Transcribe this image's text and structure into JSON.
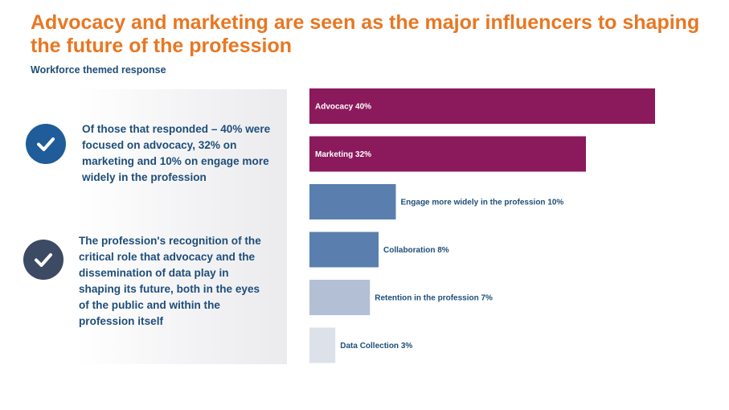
{
  "header": {
    "title": "Advocacy and marketing are seen as the major influencers to shaping the future of the profession",
    "subtitle": "Workforce themed response"
  },
  "points": [
    {
      "icon": "check-circle-icon",
      "text": "Of those that responded – 40% were focused on advocacy, 32% on marketing and 10% on engage more widely in the profession"
    },
    {
      "icon": "check-circle-icon",
      "text": "The profession's recognition of the critical role that advocacy and the dissemination of data play in shaping its future, both in the eyes of the public and within the profession itself"
    }
  ],
  "colors": {
    "title": "#e87722",
    "text": "#1f4e79",
    "advocacy_marketing": "#8b1a5c",
    "engage_collab": "#5a7fae",
    "retention": "#b3bfd4",
    "data_collection": "#dde2ea"
  },
  "chart_data": {
    "type": "bar",
    "orientation": "horizontal",
    "categories": [
      "Advocacy",
      "Marketing",
      "Engage more widely in the profession",
      "Collaboration",
      "Retention in the profession",
      "Data Collection"
    ],
    "values": [
      40,
      32,
      10,
      8,
      7,
      3
    ],
    "labels": [
      "Advocacy 40%",
      "Marketing 32%",
      "Engage more widely in the profession 10%",
      "Collaboration 8%",
      "Retention in the profession 7%",
      "Data Collection 3%"
    ],
    "bar_colors": [
      "#8b1a5c",
      "#8b1a5c",
      "#5a7fae",
      "#5a7fae",
      "#b3bfd4",
      "#dde2ea"
    ],
    "label_positions": [
      "inside",
      "inside",
      "outside",
      "outside",
      "outside",
      "outside"
    ],
    "unit": "%",
    "grid": false,
    "legend": "none"
  }
}
